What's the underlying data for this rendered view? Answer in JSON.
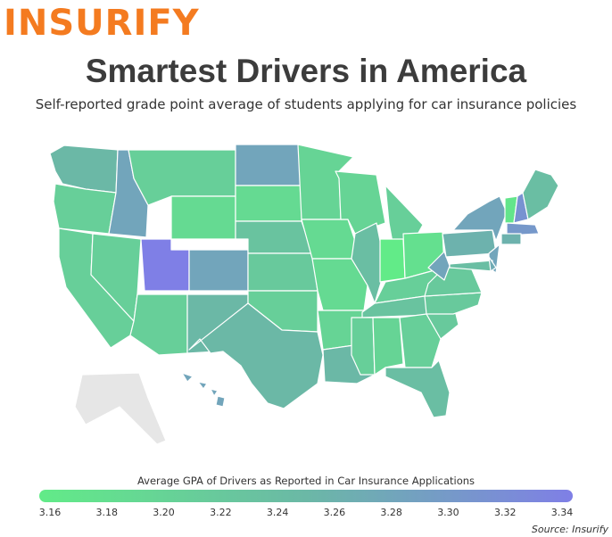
{
  "logo": "INSURIFY",
  "title": "Smartest Drivers in America",
  "subtitle": "Self-reported grade point average of students applying for car insurance policies",
  "source": "Source: Insurify",
  "legend": {
    "title": "Average GPA of Drivers as Reported in Car Insurance Applications",
    "ticks": [
      "3.16",
      "3.18",
      "3.20",
      "3.22",
      "3.24",
      "3.26",
      "3.28",
      "3.30",
      "3.32",
      "3.34"
    ],
    "min": 3.16,
    "max": 3.34,
    "color_low": "#62eb88",
    "color_mid": "#6bb8a6",
    "color_high": "#7f7fe6"
  },
  "no_data_color": "#e6e6e6",
  "map_data": [
    {
      "state": "WA",
      "gpa": 3.25
    },
    {
      "state": "OR",
      "gpa": 3.21
    },
    {
      "state": "CA",
      "gpa": 3.21
    },
    {
      "state": "NV",
      "gpa": 3.21
    },
    {
      "state": "ID",
      "gpa": 3.28
    },
    {
      "state": "MT",
      "gpa": 3.21
    },
    {
      "state": "WY",
      "gpa": 3.19
    },
    {
      "state": "UT",
      "gpa": 3.34
    },
    {
      "state": "AZ",
      "gpa": 3.21
    },
    {
      "state": "CO",
      "gpa": 3.28
    },
    {
      "state": "NM",
      "gpa": 3.25
    },
    {
      "state": "ND",
      "gpa": 3.28
    },
    {
      "state": "SD",
      "gpa": 3.19
    },
    {
      "state": "NE",
      "gpa": 3.23
    },
    {
      "state": "KS",
      "gpa": 3.22
    },
    {
      "state": "OK",
      "gpa": 3.21
    },
    {
      "state": "TX",
      "gpa": 3.25
    },
    {
      "state": "MN",
      "gpa": 3.2
    },
    {
      "state": "IA",
      "gpa": 3.19
    },
    {
      "state": "MO",
      "gpa": 3.19
    },
    {
      "state": "AR",
      "gpa": 3.2
    },
    {
      "state": "LA",
      "gpa": 3.25
    },
    {
      "state": "WI",
      "gpa": 3.2
    },
    {
      "state": "IL",
      "gpa": 3.24
    },
    {
      "state": "MI",
      "gpa": 3.21
    },
    {
      "state": "IN",
      "gpa": 3.16
    },
    {
      "state": "OH",
      "gpa": 3.18
    },
    {
      "state": "KY",
      "gpa": 3.21
    },
    {
      "state": "TN",
      "gpa": 3.23
    },
    {
      "state": "MS",
      "gpa": 3.21
    },
    {
      "state": "AL",
      "gpa": 3.2
    },
    {
      "state": "GA",
      "gpa": 3.21
    },
    {
      "state": "FL",
      "gpa": 3.24
    },
    {
      "state": "SC",
      "gpa": 3.22
    },
    {
      "state": "NC",
      "gpa": 3.22
    },
    {
      "state": "VA",
      "gpa": 3.22
    },
    {
      "state": "WV",
      "gpa": 3.28
    },
    {
      "state": "PA",
      "gpa": 3.26
    },
    {
      "state": "NY",
      "gpa": 3.28
    },
    {
      "state": "VT",
      "gpa": 3.17
    },
    {
      "state": "NH",
      "gpa": 3.31
    },
    {
      "state": "ME",
      "gpa": 3.24
    },
    {
      "state": "MA",
      "gpa": 3.3
    },
    {
      "state": "CT",
      "gpa": 3.26
    },
    {
      "state": "NJ",
      "gpa": 3.28
    },
    {
      "state": "MD",
      "gpa": 3.24
    },
    {
      "state": "DE",
      "gpa": 3.27
    },
    {
      "state": "HI",
      "gpa": 3.28
    }
  ]
}
